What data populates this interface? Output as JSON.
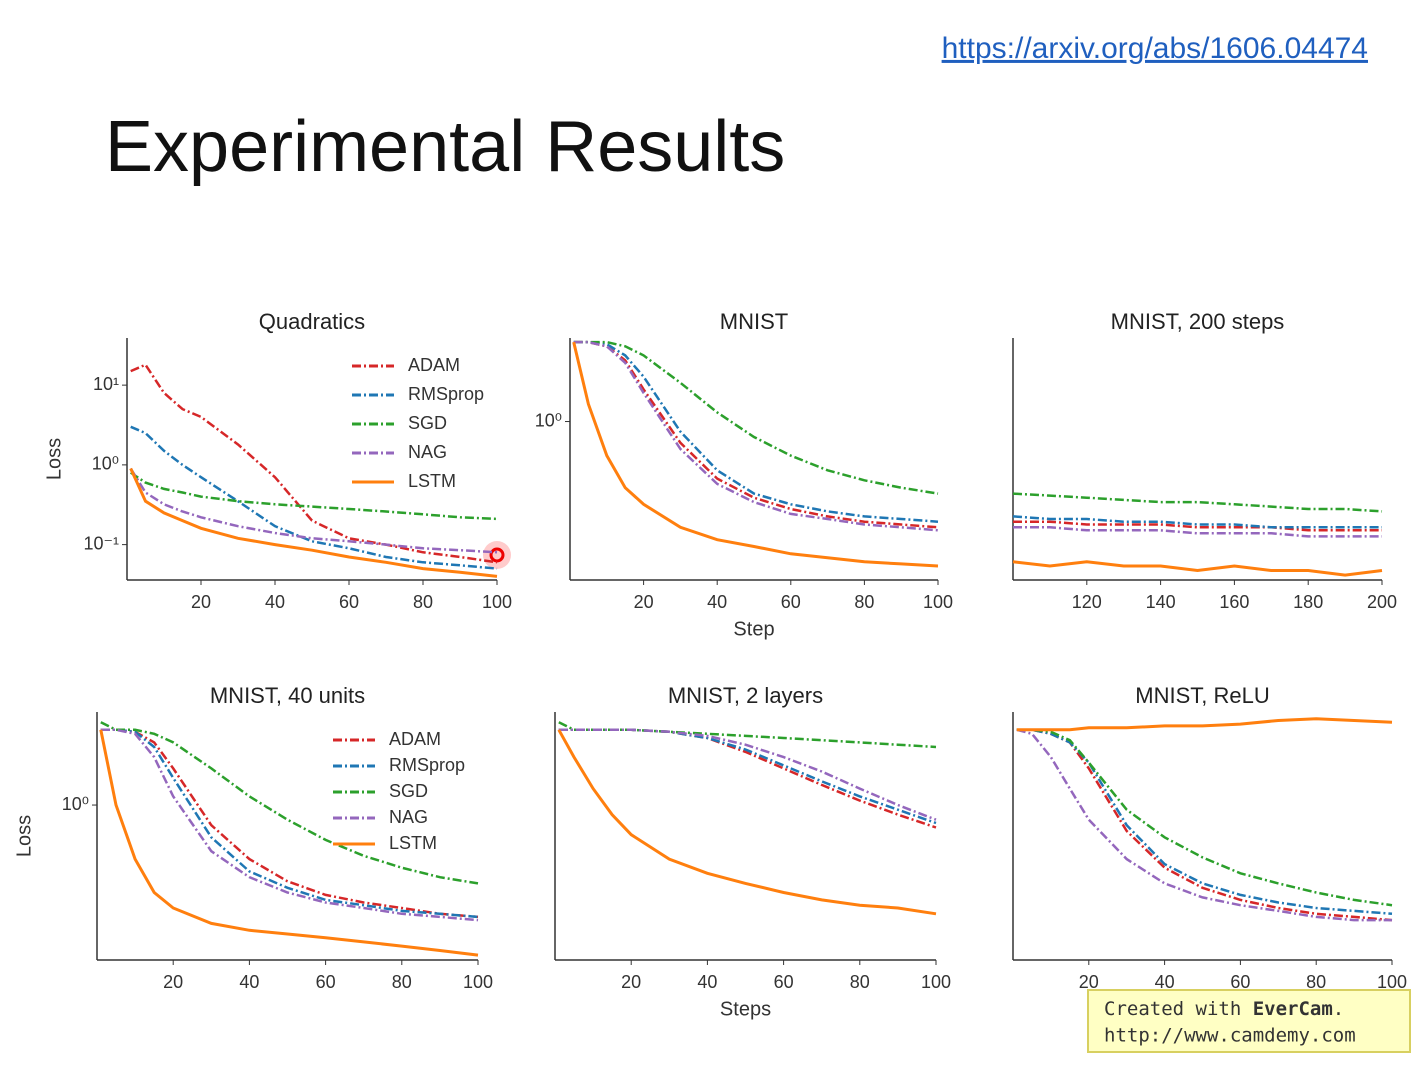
{
  "link": "https://arxiv.org/abs/1606.04474",
  "title": "Experimental Results",
  "watermark": {
    "line1_prefix": "Created with ",
    "line1_brand": "EverCam",
    "line1_suffix": ".",
    "line2": "http://www.camdemy.com"
  },
  "chart_data": [
    {
      "type": "line",
      "title": "Quadratics",
      "y_label": "Loss",
      "log_y": true,
      "legend": "upper right",
      "x": [
        1,
        5,
        10,
        15,
        20,
        30,
        40,
        50,
        60,
        70,
        80,
        90,
        100
      ],
      "xlim": [
        0,
        100
      ],
      "xticks": [
        20,
        40,
        60,
        80,
        100
      ],
      "ylim": [
        0.036,
        39
      ],
      "yticks": [
        {
          "value": 10,
          "label": "10¹"
        },
        {
          "value": 1,
          "label": "10⁰"
        },
        {
          "value": 0.1,
          "label": "10⁻¹"
        }
      ],
      "series": [
        {
          "name": "ADAM",
          "color": "#d62728",
          "style": "dashdot",
          "values": [
            15,
            18,
            8,
            5,
            4,
            1.8,
            0.7,
            0.2,
            0.12,
            0.1,
            0.08,
            0.07,
            0.06
          ]
        },
        {
          "name": "RMSprop",
          "color": "#1f77b4",
          "style": "dashdot",
          "values": [
            3,
            2.5,
            1.5,
            1.0,
            0.7,
            0.35,
            0.17,
            0.11,
            0.09,
            0.07,
            0.06,
            0.055,
            0.05
          ]
        },
        {
          "name": "SGD",
          "color": "#2ca02c",
          "style": "dashdot",
          "values": [
            0.8,
            0.6,
            0.5,
            0.45,
            0.4,
            0.35,
            0.32,
            0.3,
            0.28,
            0.26,
            0.24,
            0.22,
            0.21
          ]
        },
        {
          "name": "NAG",
          "color": "#9467bd",
          "style": "dashdot",
          "values": [
            0.9,
            0.45,
            0.32,
            0.26,
            0.22,
            0.17,
            0.14,
            0.12,
            0.11,
            0.1,
            0.09,
            0.085,
            0.08
          ]
        },
        {
          "name": "LSTM",
          "color": "#ff7f0e",
          "style": "solid",
          "values": [
            0.9,
            0.35,
            0.25,
            0.2,
            0.16,
            0.12,
            0.1,
            0.085,
            0.07,
            0.06,
            0.05,
            0.045,
            0.04
          ]
        }
      ]
    },
    {
      "type": "line",
      "title": "MNIST",
      "x_label": "Step",
      "log_y": true,
      "x": [
        1,
        5,
        10,
        15,
        20,
        30,
        40,
        50,
        60,
        70,
        80,
        90,
        100
      ],
      "xlim": [
        0,
        100
      ],
      "xticks": [
        20,
        40,
        60,
        80,
        100
      ],
      "ylim": [
        0.19,
        2.4
      ],
      "yticks": [
        {
          "value": 1,
          "label": "10⁰"
        }
      ],
      "series": [
        {
          "color": "#d62728",
          "style": "dashdot",
          "values": [
            2.3,
            2.3,
            2.2,
            1.9,
            1.4,
            0.8,
            0.55,
            0.45,
            0.4,
            0.37,
            0.35,
            0.34,
            0.33
          ]
        },
        {
          "color": "#1f77b4",
          "style": "dashdot",
          "values": [
            2.3,
            2.3,
            2.25,
            2.0,
            1.6,
            0.9,
            0.6,
            0.47,
            0.42,
            0.39,
            0.37,
            0.36,
            0.35
          ]
        },
        {
          "color": "#2ca02c",
          "style": "dashdot",
          "values": [
            2.3,
            2.3,
            2.3,
            2.2,
            2.0,
            1.5,
            1.1,
            0.85,
            0.7,
            0.6,
            0.54,
            0.5,
            0.47
          ]
        },
        {
          "color": "#9467bd",
          "style": "dashdot",
          "values": [
            2.3,
            2.3,
            2.2,
            1.85,
            1.35,
            0.75,
            0.52,
            0.43,
            0.38,
            0.36,
            0.34,
            0.33,
            0.32
          ]
        },
        {
          "color": "#ff7f0e",
          "style": "solid",
          "values": [
            2.3,
            1.2,
            0.7,
            0.5,
            0.42,
            0.33,
            0.29,
            0.27,
            0.25,
            0.24,
            0.23,
            0.225,
            0.22
          ]
        }
      ]
    },
    {
      "type": "line",
      "title": "MNIST, 200 steps",
      "log_y": true,
      "x": [
        100,
        110,
        120,
        130,
        140,
        150,
        160,
        170,
        180,
        190,
        200
      ],
      "xlim": [
        100,
        200
      ],
      "xticks": [
        120,
        140,
        160,
        180,
        200
      ],
      "ylim": [
        0.19,
        2.4
      ],
      "series": [
        {
          "color": "#d62728",
          "style": "dashdot",
          "values": [
            0.35,
            0.35,
            0.34,
            0.34,
            0.34,
            0.33,
            0.33,
            0.33,
            0.32,
            0.32,
            0.32
          ]
        },
        {
          "color": "#1f77b4",
          "style": "dashdot",
          "values": [
            0.37,
            0.36,
            0.36,
            0.35,
            0.35,
            0.34,
            0.34,
            0.33,
            0.33,
            0.33,
            0.33
          ]
        },
        {
          "color": "#2ca02c",
          "style": "dashdot",
          "values": [
            0.47,
            0.46,
            0.45,
            0.44,
            0.43,
            0.43,
            0.42,
            0.41,
            0.4,
            0.4,
            0.39
          ]
        },
        {
          "color": "#9467bd",
          "style": "dashdot",
          "values": [
            0.33,
            0.33,
            0.32,
            0.32,
            0.32,
            0.31,
            0.31,
            0.31,
            0.3,
            0.3,
            0.3
          ]
        },
        {
          "color": "#ff7f0e",
          "style": "solid",
          "values": [
            0.23,
            0.22,
            0.23,
            0.22,
            0.22,
            0.21,
            0.22,
            0.21,
            0.21,
            0.2,
            0.21
          ]
        }
      ]
    },
    {
      "type": "line",
      "title": "MNIST, 40 units",
      "y_label": "Loss",
      "log_y": true,
      "legend": "upper right",
      "x": [
        1,
        5,
        10,
        15,
        20,
        30,
        40,
        50,
        60,
        70,
        80,
        90,
        100
      ],
      "xlim": [
        0,
        100
      ],
      "xticks": [
        20,
        40,
        60,
        80,
        100
      ],
      "ylim": [
        0.18,
        2.8
      ],
      "yticks": [
        {
          "value": 1,
          "label": "10⁰"
        }
      ],
      "series": [
        {
          "name": "ADAM",
          "color": "#d62728",
          "style": "dashdot",
          "values": [
            2.3,
            2.3,
            2.25,
            2.0,
            1.5,
            0.8,
            0.55,
            0.43,
            0.37,
            0.34,
            0.32,
            0.3,
            0.29
          ]
        },
        {
          "name": "RMSprop",
          "color": "#1f77b4",
          "style": "dashdot",
          "values": [
            2.3,
            2.3,
            2.25,
            1.9,
            1.35,
            0.7,
            0.48,
            0.4,
            0.35,
            0.33,
            0.31,
            0.3,
            0.29
          ]
        },
        {
          "name": "SGD",
          "color": "#2ca02c",
          "style": "dashdot",
          "values": [
            2.5,
            2.3,
            2.3,
            2.2,
            2.0,
            1.5,
            1.1,
            0.85,
            0.68,
            0.57,
            0.5,
            0.45,
            0.42
          ]
        },
        {
          "name": "NAG",
          "color": "#9467bd",
          "style": "dashdot",
          "values": [
            2.3,
            2.3,
            2.2,
            1.7,
            1.1,
            0.6,
            0.45,
            0.38,
            0.34,
            0.32,
            0.3,
            0.29,
            0.28
          ]
        },
        {
          "name": "LSTM",
          "color": "#ff7f0e",
          "style": "solid",
          "values": [
            2.3,
            1.0,
            0.55,
            0.38,
            0.32,
            0.27,
            0.25,
            0.24,
            0.23,
            0.22,
            0.21,
            0.2,
            0.19
          ]
        }
      ]
    },
    {
      "type": "line",
      "title": "MNIST, 2 layers",
      "x_label": "Steps",
      "log_y": true,
      "x": [
        1,
        5,
        10,
        15,
        20,
        30,
        40,
        50,
        60,
        70,
        80,
        90,
        100
      ],
      "xlim": [
        0,
        100
      ],
      "xticks": [
        20,
        40,
        60,
        80,
        100
      ],
      "ylim": [
        0.18,
        2.8
      ],
      "series": [
        {
          "color": "#d62728",
          "style": "dashdot",
          "values": [
            2.3,
            2.3,
            2.3,
            2.3,
            2.3,
            2.25,
            2.1,
            1.8,
            1.5,
            1.25,
            1.05,
            0.9,
            0.78
          ]
        },
        {
          "color": "#1f77b4",
          "style": "dashdot",
          "values": [
            2.3,
            2.3,
            2.3,
            2.3,
            2.3,
            2.25,
            2.1,
            1.85,
            1.55,
            1.3,
            1.1,
            0.95,
            0.82
          ]
        },
        {
          "color": "#2ca02c",
          "style": "dashdot",
          "values": [
            2.5,
            2.3,
            2.3,
            2.3,
            2.3,
            2.25,
            2.2,
            2.15,
            2.1,
            2.05,
            2.0,
            1.95,
            1.9
          ]
        },
        {
          "color": "#9467bd",
          "style": "dashdot",
          "values": [
            2.3,
            2.3,
            2.3,
            2.3,
            2.3,
            2.25,
            2.15,
            1.95,
            1.7,
            1.45,
            1.2,
            1.0,
            0.85
          ]
        },
        {
          "color": "#ff7f0e",
          "style": "solid",
          "values": [
            2.3,
            1.7,
            1.2,
            0.9,
            0.72,
            0.55,
            0.47,
            0.42,
            0.38,
            0.35,
            0.33,
            0.32,
            0.3
          ]
        }
      ]
    },
    {
      "type": "line",
      "title": "MNIST, ReLU",
      "log_y": true,
      "x": [
        1,
        5,
        10,
        15,
        20,
        30,
        40,
        50,
        60,
        70,
        80,
        90,
        100
      ],
      "xlim": [
        0,
        100
      ],
      "xticks": [
        20,
        40,
        60,
        80,
        100
      ],
      "ylim": [
        0.18,
        2.8
      ],
      "series": [
        {
          "color": "#d62728",
          "style": "dashdot",
          "values": [
            2.3,
            2.3,
            2.2,
            2.0,
            1.5,
            0.75,
            0.5,
            0.4,
            0.35,
            0.32,
            0.3,
            0.29,
            0.28
          ]
        },
        {
          "color": "#1f77b4",
          "style": "dashdot",
          "values": [
            2.3,
            2.3,
            2.2,
            2.0,
            1.6,
            0.8,
            0.52,
            0.42,
            0.37,
            0.34,
            0.32,
            0.31,
            0.3
          ]
        },
        {
          "color": "#2ca02c",
          "style": "dashdot",
          "values": [
            2.3,
            2.3,
            2.25,
            2.05,
            1.6,
            0.95,
            0.7,
            0.56,
            0.47,
            0.42,
            0.38,
            0.35,
            0.33
          ]
        },
        {
          "color": "#9467bd",
          "style": "dashdot",
          "values": [
            2.3,
            2.2,
            1.7,
            1.2,
            0.85,
            0.55,
            0.42,
            0.36,
            0.33,
            0.31,
            0.29,
            0.28,
            0.28
          ]
        },
        {
          "color": "#ff7f0e",
          "style": "solid",
          "values": [
            2.3,
            2.3,
            2.3,
            2.3,
            2.35,
            2.35,
            2.4,
            2.4,
            2.45,
            2.55,
            2.6,
            2.55,
            2.5
          ]
        }
      ]
    }
  ]
}
